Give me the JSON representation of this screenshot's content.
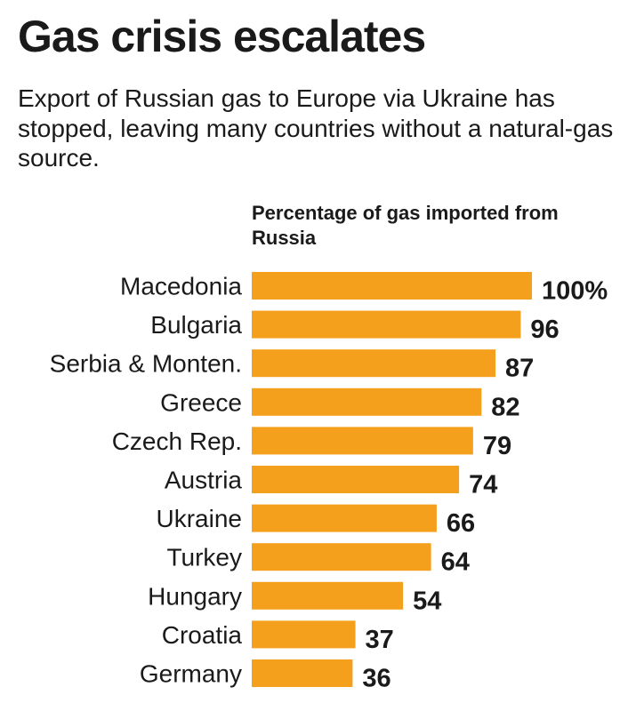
{
  "title": "Gas crisis escalates",
  "subtitle": "Export of Russian gas to Europe via Ukraine has stopped, leaving many countries without a natural-gas source.",
  "chart_heading": "Percentage of gas imported from Russia",
  "colors": {
    "bar": "#F5A01C",
    "text": "#1a1a1a"
  },
  "chart_data": {
    "type": "bar",
    "orientation": "horizontal",
    "title": "Percentage of gas imported from Russia",
    "categories": [
      "Macedonia",
      "Bulgaria",
      "Serbia & Monten.",
      "Greece",
      "Czech Rep.",
      "Austria",
      "Ukraine",
      "Turkey",
      "Hungary",
      "Croatia",
      "Germany"
    ],
    "values": [
      100,
      96,
      87,
      82,
      79,
      74,
      66,
      64,
      54,
      37,
      36
    ],
    "value_labels": [
      "100%",
      "96",
      "87",
      "82",
      "79",
      "74",
      "66",
      "64",
      "54",
      "37",
      "36"
    ],
    "xlim": [
      0,
      100
    ],
    "grid": false,
    "legend": "none"
  }
}
